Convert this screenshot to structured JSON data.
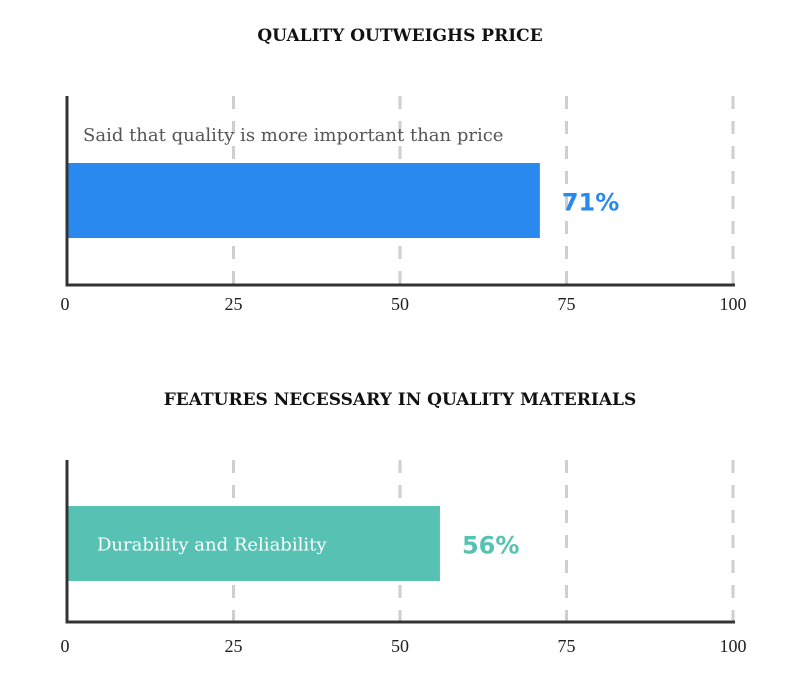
{
  "chart_data": [
    {
      "type": "bar",
      "orientation": "horizontal",
      "title": "QUALITY OUTWEIGHS PRICE",
      "categories": [
        "Said that quality is more important than price"
      ],
      "values": [
        71
      ],
      "value_labels": [
        "71%"
      ],
      "xlim": [
        0,
        100
      ],
      "xticks": [
        "0",
        "25",
        "50",
        "75",
        "100"
      ],
      "grid": true,
      "color": "#2a89ee",
      "label_inside_bar": false
    },
    {
      "type": "bar",
      "orientation": "horizontal",
      "title": "FEATURES NECESSARY IN QUALITY MATERIALS",
      "categories": [
        "Durability and Reliability"
      ],
      "values": [
        56
      ],
      "value_labels": [
        "56%"
      ],
      "xlim": [
        0,
        100
      ],
      "xticks": [
        "0",
        "25",
        "50",
        "75",
        "100"
      ],
      "grid": true,
      "color": "#57c2b3",
      "label_inside_bar": true
    }
  ]
}
